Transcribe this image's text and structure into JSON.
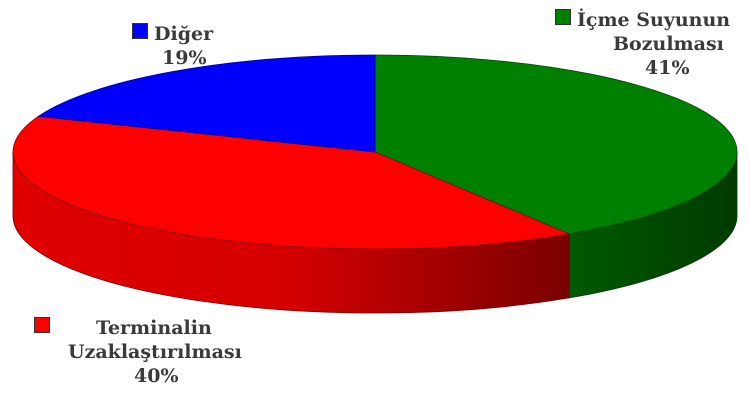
{
  "chart_data": {
    "type": "pie",
    "style": "3d-exploded-perspective",
    "title": "",
    "slices": [
      {
        "name": "İçme Suyunun Bozulması",
        "lines": [
          "İçme Suyunun",
          "Bozulması"
        ],
        "value": 41,
        "value_label": "41%",
        "color": "#008000"
      },
      {
        "name": "Terminalin Uzaklaştırılması",
        "lines": [
          "Terminalin",
          "Uzaklaştırılması"
        ],
        "value": 40,
        "value_label": "40%",
        "color": "#ff0000"
      },
      {
        "name": "Diğer",
        "lines": [
          "Diğer"
        ],
        "value": 19,
        "value_label": "19%",
        "color": "#0000ff"
      }
    ],
    "legend": "inline-labels"
  }
}
